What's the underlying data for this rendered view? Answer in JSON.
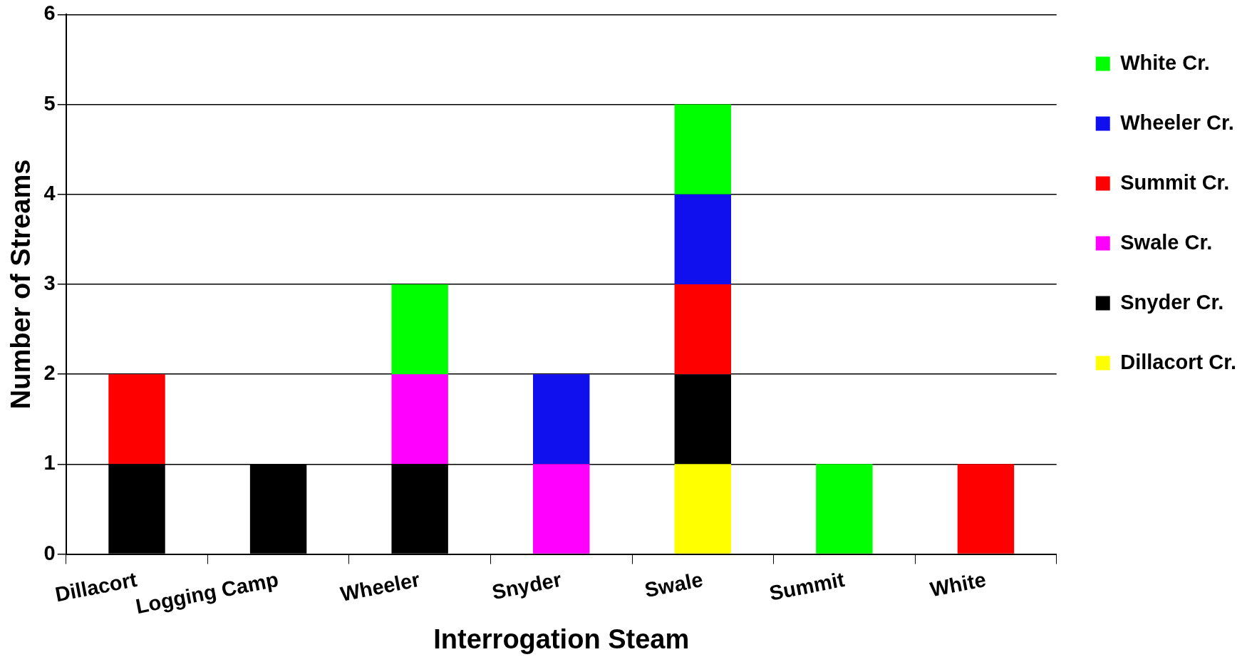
{
  "chart_data": {
    "type": "bar",
    "stacked": true,
    "xlabel": "Interrogation Steam",
    "ylabel": "Number of Streams",
    "categories": [
      "Dillacort",
      "Logging Camp",
      "Wheeler",
      "Snyder",
      "Swale",
      "Summit",
      "White"
    ],
    "series": [
      {
        "name": "Dillacort Cr.",
        "color": "#ffff00",
        "values": [
          0,
          0,
          0,
          0,
          1,
          0,
          0
        ]
      },
      {
        "name": "Snyder Cr.",
        "color": "#000000",
        "values": [
          1,
          1,
          1,
          0,
          1,
          0,
          0
        ]
      },
      {
        "name": "Swale Cr.",
        "color": "#ff00ff",
        "values": [
          0,
          0,
          1,
          1,
          0,
          0,
          0
        ]
      },
      {
        "name": "Summit Cr.",
        "color": "#ff0000",
        "values": [
          1,
          0,
          0,
          0,
          1,
          0,
          1
        ]
      },
      {
        "name": "Wheeler Cr.",
        "color": "#1010ee",
        "values": [
          0,
          0,
          0,
          1,
          1,
          0,
          0
        ]
      },
      {
        "name": "White Cr.",
        "color": "#00ff00",
        "values": [
          0,
          0,
          1,
          0,
          1,
          1,
          0
        ]
      }
    ],
    "ylim": [
      0,
      6
    ],
    "yticks": [
      0,
      1,
      2,
      3,
      4,
      5,
      6
    ],
    "grid": "y",
    "legend": "top right"
  }
}
